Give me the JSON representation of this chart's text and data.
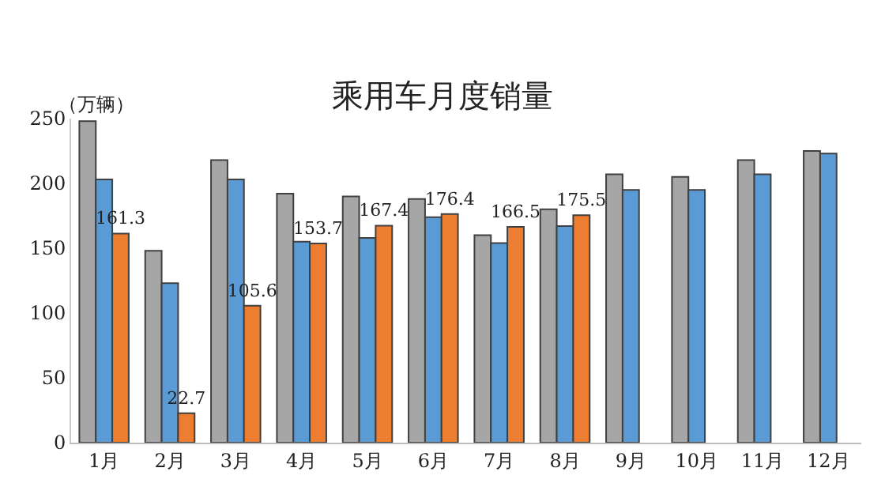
{
  "chart_data": {
    "type": "bar",
    "title": "乘用车月度销量",
    "ylabel": "（万辆）",
    "categories": [
      "1月",
      "2月",
      "3月",
      "4月",
      "5月",
      "6月",
      "7月",
      "8月",
      "9月",
      "10月",
      "11月",
      "12月"
    ],
    "series": [
      {
        "color": "#a6a6a6",
        "values": [
          248,
          148,
          218,
          192,
          190,
          188,
          160,
          180,
          207,
          205,
          218,
          225
        ]
      },
      {
        "color": "#5b9bd5",
        "values": [
          203,
          123,
          203,
          155,
          158,
          174,
          154,
          167,
          195,
          195,
          207,
          223
        ]
      },
      {
        "color": "#ed7d31",
        "values": [
          161.3,
          22.7,
          105.6,
          153.7,
          167.4,
          176.4,
          166.5,
          175.5,
          null,
          null,
          null,
          null
        ],
        "value_labels": [
          "161.3",
          "22.7",
          "105.6",
          "153.7",
          "167.4",
          "176.4",
          "166.5",
          "175.5",
          null,
          null,
          null,
          null
        ]
      }
    ],
    "ylim": [
      0,
      250
    ],
    "yticks": [
      0,
      50,
      100,
      150,
      200,
      250
    ]
  }
}
